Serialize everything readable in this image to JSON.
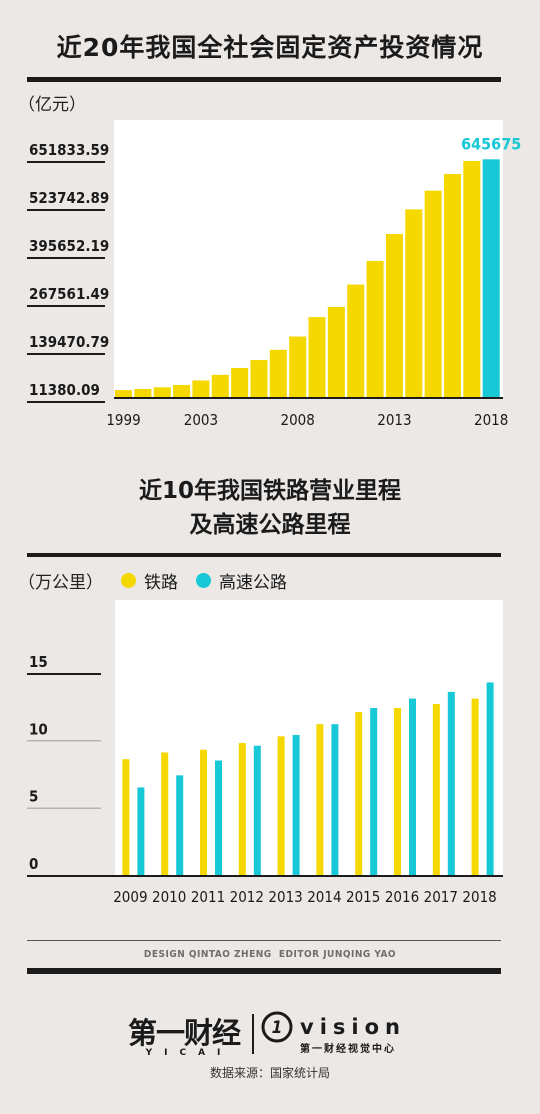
{
  "colors": {
    "background": "#ebe8e6",
    "yellow": "#f5d800",
    "cyan": "#17c8d6",
    "dark": "#1b1b1b"
  },
  "chart_data": [
    {
      "type": "bar",
      "title": "近20年我国全社会固定资产投资情况",
      "ylabel": "（亿元）",
      "x": [
        1999,
        2000,
        2001,
        2002,
        2003,
        2004,
        2005,
        2006,
        2007,
        2008,
        2009,
        2010,
        2011,
        2012,
        2013,
        2014,
        2015,
        2016,
        2017,
        2018
      ],
      "values": [
        29855,
        32918,
        37214,
        43500,
        55567,
        70477,
        88774,
        109998,
        137324,
        172828,
        224599,
        251684,
        311485,
        374695,
        446294,
        512021,
        561999,
        606466,
        641238,
        645675
      ],
      "xticks": [
        "1999",
        "2003",
        "2008",
        "2013",
        "2018"
      ],
      "yticks": [
        "651833.59",
        "523742.89",
        "395652.19",
        "267561.49",
        "139470.79",
        "11380.09"
      ],
      "yaxis": [
        11380.09,
        651833.59
      ],
      "highlight": {
        "category": 2018,
        "label": "645675",
        "color": "cyan"
      }
    },
    {
      "type": "bar",
      "title": [
        "近10年我国铁路营业里程",
        "及高速公路里程"
      ],
      "ylabel": "（万公里）",
      "categories": [
        "2009",
        "2010",
        "2011",
        "2012",
        "2013",
        "2014",
        "2015",
        "2016",
        "2017",
        "2018"
      ],
      "series": [
        {
          "name": "铁路",
          "color": "yellow",
          "values": [
            8.6,
            9.1,
            9.3,
            9.8,
            10.3,
            11.2,
            12.1,
            12.4,
            12.7,
            13.1
          ]
        },
        {
          "name": "高速公路",
          "color": "cyan",
          "values": [
            6.5,
            7.4,
            8.5,
            9.6,
            10.4,
            11.2,
            12.4,
            13.1,
            13.6,
            14.3
          ]
        }
      ],
      "yticks": [
        "15",
        "10",
        "5",
        "0"
      ],
      "ylim": [
        0,
        15
      ]
    }
  ],
  "credits": "DESIGN QINTAO ZHENG  EDITOR JUNQING YAO",
  "logo": {
    "name": "第一财经",
    "sub": "YICAI",
    "vision": "vision",
    "vision_sub": "第一财经视觉中心"
  },
  "source": "数据来源：国家统计局"
}
